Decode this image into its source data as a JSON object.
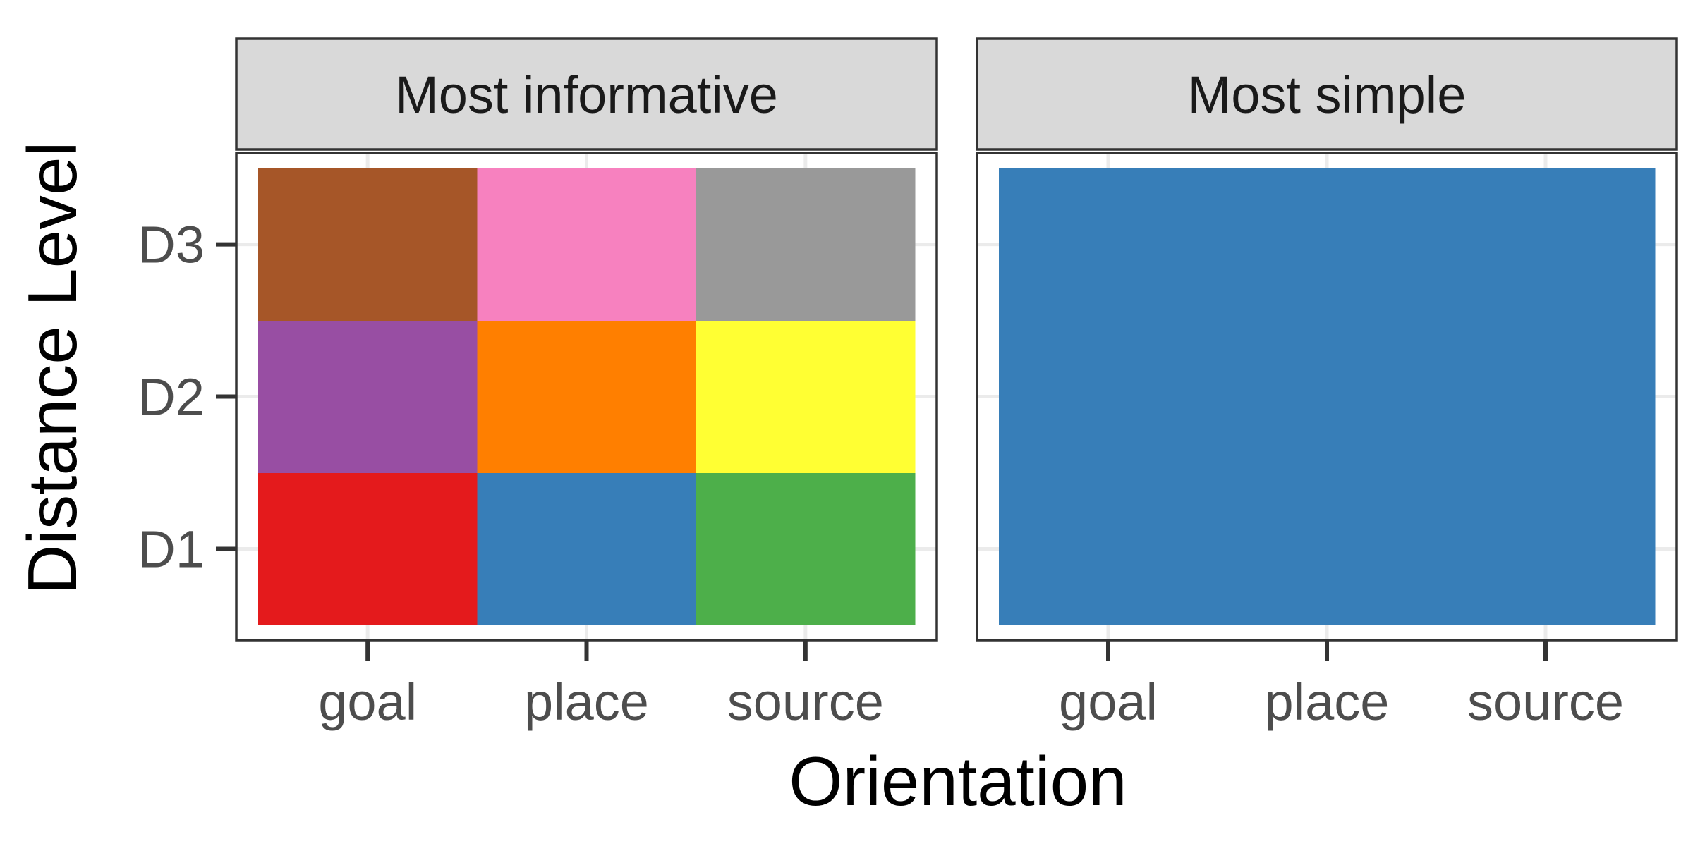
{
  "chart_data": {
    "type": "heatmap",
    "xlabel": "Orientation",
    "ylabel": "Distance Level",
    "x_categories": [
      "goal",
      "place",
      "source"
    ],
    "y_categories": [
      "D1",
      "D2",
      "D3"
    ],
    "grid": true,
    "legend": "none",
    "facets": [
      {
        "title": "Most informative",
        "cells": [
          {
            "x": "goal",
            "y": "D1",
            "color": "#E41A1C"
          },
          {
            "x": "place",
            "y": "D1",
            "color": "#377EB8"
          },
          {
            "x": "source",
            "y": "D1",
            "color": "#4DAF4A"
          },
          {
            "x": "goal",
            "y": "D2",
            "color": "#984EA3"
          },
          {
            "x": "place",
            "y": "D2",
            "color": "#FF7F00"
          },
          {
            "x": "source",
            "y": "D2",
            "color": "#FFFF33"
          },
          {
            "x": "goal",
            "y": "D3",
            "color": "#A65628"
          },
          {
            "x": "place",
            "y": "D3",
            "color": "#F781BF"
          },
          {
            "x": "source",
            "y": "D3",
            "color": "#999999"
          }
        ]
      },
      {
        "title": "Most simple",
        "cells": [
          {
            "x": "goal",
            "y": "D1",
            "color": "#377EB8"
          },
          {
            "x": "place",
            "y": "D1",
            "color": "#377EB8"
          },
          {
            "x": "source",
            "y": "D1",
            "color": "#377EB8"
          },
          {
            "x": "goal",
            "y": "D2",
            "color": "#377EB8"
          },
          {
            "x": "place",
            "y": "D2",
            "color": "#377EB8"
          },
          {
            "x": "source",
            "y": "D2",
            "color": "#377EB8"
          },
          {
            "x": "goal",
            "y": "D3",
            "color": "#377EB8"
          },
          {
            "x": "place",
            "y": "D3",
            "color": "#377EB8"
          },
          {
            "x": "source",
            "y": "D3",
            "color": "#377EB8"
          }
        ]
      }
    ]
  }
}
